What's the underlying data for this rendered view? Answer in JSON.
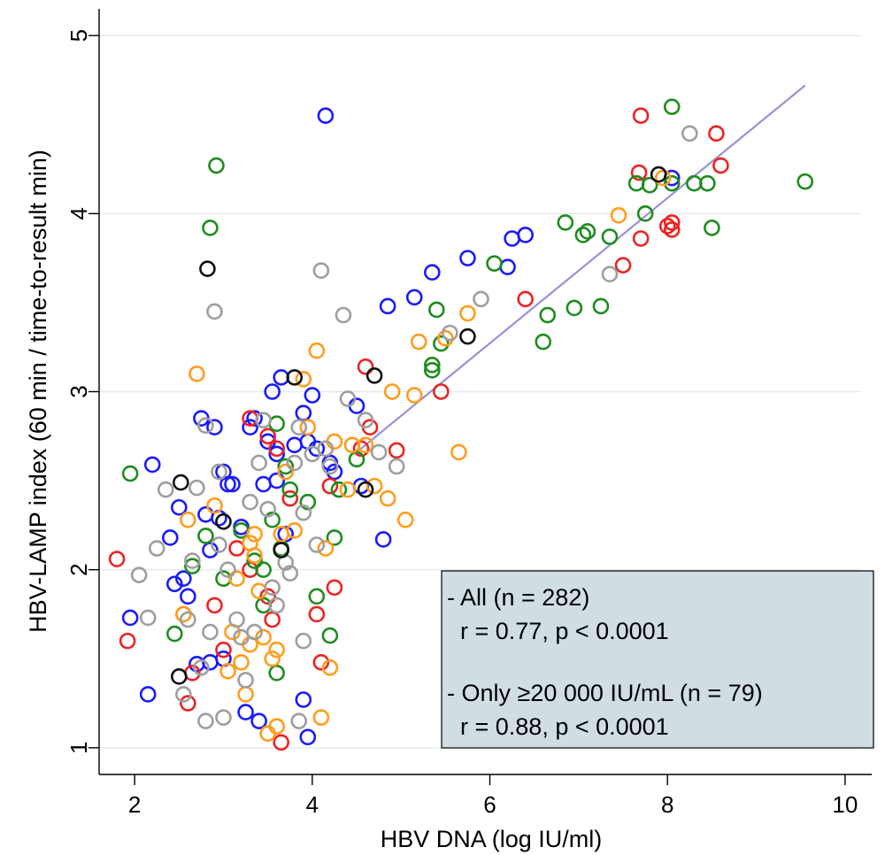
{
  "chart_data": {
    "type": "scatter",
    "xlabel": "HBV DNA (log IU/ml)",
    "ylabel": "HBV-LAMP index (60 min / time-to-result min)",
    "xlim": [
      1.6,
      10.3
    ],
    "ylim": [
      0.85,
      5.15
    ],
    "xticks": [
      2,
      4,
      6,
      8,
      10
    ],
    "yticks": [
      1,
      2,
      3,
      4,
      5
    ],
    "grid": "horizontal",
    "colors": {
      "blue": "#1a1aff",
      "red": "#ee2222",
      "green": "#1e8c1e",
      "orange": "#ff9d1c",
      "gray": "#9e9e9e",
      "black": "#111111",
      "fit": "#9892d6"
    },
    "fit_line": {
      "x": [
        4.5,
        9.55
      ],
      "y": [
        2.66,
        4.72
      ]
    },
    "annotations": [
      {
        "lines": [
          "- All (n = 282)",
          "  r = 0.77, p < 0.0001",
          "",
          "- Only ≥20 000 IU/mL (n = 79)",
          "  r = 0.88, p < 0.0001"
        ]
      }
    ],
    "series": [
      {
        "color": "blue",
        "points": [
          [
            2.2,
            2.59
          ],
          [
            4.15,
            4.55
          ],
          [
            1.95,
            1.73
          ],
          [
            2.15,
            1.3
          ],
          [
            2.4,
            2.18
          ],
          [
            2.55,
            1.95
          ],
          [
            2.6,
            1.85
          ],
          [
            2.75,
            2.85
          ],
          [
            2.7,
            1.47
          ],
          [
            2.8,
            2.31
          ],
          [
            2.85,
            2.11
          ],
          [
            2.9,
            2.8
          ],
          [
            2.95,
            2.29
          ],
          [
            3.0,
            2.55
          ],
          [
            3.05,
            2.48
          ],
          [
            3.1,
            2.48
          ],
          [
            3.2,
            2.24
          ],
          [
            3.3,
            2.8
          ],
          [
            3.35,
            2.85
          ],
          [
            3.45,
            2.48
          ],
          [
            3.5,
            2.72
          ],
          [
            3.55,
            3.0
          ],
          [
            3.6,
            2.5
          ],
          [
            3.65,
            3.08
          ],
          [
            3.7,
            2.2
          ],
          [
            3.8,
            2.7
          ],
          [
            3.9,
            2.88
          ],
          [
            3.95,
            2.72
          ],
          [
            4.0,
            2.98
          ],
          [
            4.05,
            2.68
          ],
          [
            3.9,
            1.27
          ],
          [
            3.95,
            1.06
          ],
          [
            4.2,
            2.6
          ],
          [
            4.5,
            2.92
          ],
          [
            4.8,
            2.17
          ],
          [
            4.85,
            3.48
          ],
          [
            5.15,
            3.53
          ],
          [
            5.35,
            3.67
          ],
          [
            5.75,
            3.75
          ],
          [
            6.2,
            3.7
          ],
          [
            6.25,
            3.86
          ],
          [
            6.4,
            3.88
          ],
          [
            8.05,
            4.2
          ],
          [
            3.25,
            1.2
          ],
          [
            3.4,
            1.15
          ],
          [
            2.45,
            1.92
          ],
          [
            2.5,
            2.35
          ],
          [
            3.0,
            1.5
          ],
          [
            2.85,
            1.48
          ],
          [
            3.6,
            2.65
          ],
          [
            4.25,
            2.55
          ],
          [
            4.55,
            2.47
          ]
        ]
      },
      {
        "color": "red",
        "points": [
          [
            1.8,
            2.06
          ],
          [
            1.92,
            1.6
          ],
          [
            2.6,
            1.25
          ],
          [
            2.9,
            1.8
          ],
          [
            3.0,
            1.55
          ],
          [
            3.3,
            2.85
          ],
          [
            3.5,
            1.85
          ],
          [
            3.5,
            2.75
          ],
          [
            3.6,
            2.68
          ],
          [
            3.65,
            1.03
          ],
          [
            3.75,
            2.4
          ],
          [
            4.05,
            1.75
          ],
          [
            4.1,
            1.48
          ],
          [
            4.2,
            2.47
          ],
          [
            4.25,
            1.9
          ],
          [
            4.55,
            2.68
          ],
          [
            4.6,
            3.14
          ],
          [
            4.65,
            2.8
          ],
          [
            4.95,
            2.67
          ],
          [
            5.45,
            3.0
          ],
          [
            6.4,
            3.52
          ],
          [
            7.5,
            3.71
          ],
          [
            7.7,
            3.86
          ],
          [
            7.7,
            4.55
          ],
          [
            7.68,
            4.23
          ],
          [
            8.0,
            3.93
          ],
          [
            8.05,
            3.91
          ],
          [
            8.05,
            3.95
          ],
          [
            8.55,
            4.45
          ],
          [
            8.6,
            4.27
          ],
          [
            2.65,
            1.42
          ],
          [
            3.55,
            1.72
          ],
          [
            3.3,
            2.0
          ],
          [
            3.15,
            2.12
          ]
        ]
      },
      {
        "color": "green",
        "points": [
          [
            1.95,
            2.54
          ],
          [
            2.45,
            1.64
          ],
          [
            2.65,
            2.02
          ],
          [
            2.85,
            3.92
          ],
          [
            2.92,
            4.27
          ],
          [
            2.8,
            2.19
          ],
          [
            3.0,
            1.95
          ],
          [
            3.2,
            2.22
          ],
          [
            3.35,
            2.05
          ],
          [
            3.45,
            2.0
          ],
          [
            3.45,
            1.8
          ],
          [
            3.6,
            2.82
          ],
          [
            3.65,
            2.12
          ],
          [
            3.7,
            2.58
          ],
          [
            3.75,
            2.45
          ],
          [
            3.95,
            2.38
          ],
          [
            4.05,
            1.85
          ],
          [
            4.2,
            1.63
          ],
          [
            4.25,
            2.18
          ],
          [
            4.5,
            2.62
          ],
          [
            5.35,
            3.12
          ],
          [
            5.4,
            3.46
          ],
          [
            5.45,
            3.27
          ],
          [
            6.05,
            3.72
          ],
          [
            6.6,
            3.28
          ],
          [
            6.65,
            3.43
          ],
          [
            6.85,
            3.95
          ],
          [
            6.95,
            3.47
          ],
          [
            7.05,
            3.88
          ],
          [
            7.1,
            3.9
          ],
          [
            7.25,
            3.48
          ],
          [
            7.35,
            3.87
          ],
          [
            7.65,
            4.17
          ],
          [
            7.75,
            4.0
          ],
          [
            7.8,
            4.16
          ],
          [
            8.05,
            4.6
          ],
          [
            8.05,
            4.17
          ],
          [
            8.3,
            4.17
          ],
          [
            8.45,
            4.17
          ],
          [
            8.5,
            3.92
          ],
          [
            9.55,
            4.18
          ],
          [
            3.6,
            1.42
          ],
          [
            5.35,
            3.15
          ],
          [
            3.55,
            2.28
          ],
          [
            4.3,
            2.45
          ]
        ]
      },
      {
        "color": "orange",
        "points": [
          [
            2.7,
            3.1
          ],
          [
            2.6,
            2.28
          ],
          [
            2.55,
            1.75
          ],
          [
            2.9,
            2.36
          ],
          [
            3.1,
            1.65
          ],
          [
            3.15,
            1.95
          ],
          [
            3.2,
            1.48
          ],
          [
            3.25,
            1.3
          ],
          [
            3.3,
            2.15
          ],
          [
            3.35,
            2.08
          ],
          [
            3.4,
            1.88
          ],
          [
            3.45,
            1.62
          ],
          [
            3.55,
            1.5
          ],
          [
            3.6,
            1.12
          ],
          [
            3.6,
            1.55
          ],
          [
            3.65,
            2.2
          ],
          [
            3.7,
            2.55
          ],
          [
            3.8,
            2.22
          ],
          [
            3.9,
            3.07
          ],
          [
            3.95,
            2.8
          ],
          [
            4.05,
            3.23
          ],
          [
            4.1,
            1.17
          ],
          [
            4.15,
            2.12
          ],
          [
            4.2,
            1.45
          ],
          [
            4.25,
            2.72
          ],
          [
            4.4,
            2.45
          ],
          [
            4.45,
            2.7
          ],
          [
            4.6,
            2.7
          ],
          [
            4.7,
            2.47
          ],
          [
            4.9,
            3.0
          ],
          [
            4.85,
            2.4
          ],
          [
            5.05,
            2.28
          ],
          [
            5.15,
            2.98
          ],
          [
            5.2,
            3.28
          ],
          [
            5.5,
            3.3
          ],
          [
            5.65,
            2.66
          ],
          [
            5.75,
            3.44
          ],
          [
            7.45,
            3.99
          ],
          [
            7.95,
            4.2
          ],
          [
            3.05,
            1.43
          ],
          [
            3.3,
            1.58
          ],
          [
            3.5,
            1.08
          ],
          [
            2.55,
            1.75
          ],
          [
            3.35,
            2.2
          ]
        ]
      },
      {
        "color": "gray",
        "points": [
          [
            2.05,
            1.97
          ],
          [
            2.15,
            1.73
          ],
          [
            2.25,
            2.12
          ],
          [
            2.35,
            2.45
          ],
          [
            2.55,
            1.3
          ],
          [
            2.65,
            2.05
          ],
          [
            2.7,
            2.46
          ],
          [
            2.75,
            1.45
          ],
          [
            2.8,
            2.81
          ],
          [
            2.8,
            1.15
          ],
          [
            2.9,
            3.45
          ],
          [
            2.85,
            1.65
          ],
          [
            2.95,
            2.14
          ],
          [
            3.0,
            1.17
          ],
          [
            3.05,
            2.0
          ],
          [
            3.15,
            1.72
          ],
          [
            3.2,
            1.62
          ],
          [
            3.25,
            1.38
          ],
          [
            3.3,
            2.38
          ],
          [
            3.4,
            2.6
          ],
          [
            3.45,
            2.84
          ],
          [
            3.5,
            2.34
          ],
          [
            3.55,
            1.9
          ],
          [
            3.6,
            1.8
          ],
          [
            3.7,
            2.04
          ],
          [
            3.75,
            1.98
          ],
          [
            3.8,
            2.6
          ],
          [
            3.85,
            2.8
          ],
          [
            3.9,
            1.6
          ],
          [
            3.9,
            2.32
          ],
          [
            4.0,
            2.65
          ],
          [
            4.05,
            2.14
          ],
          [
            4.1,
            3.68
          ],
          [
            4.15,
            2.68
          ],
          [
            4.2,
            2.58
          ],
          [
            4.35,
            3.43
          ],
          [
            4.4,
            2.96
          ],
          [
            4.6,
            2.84
          ],
          [
            4.75,
            2.66
          ],
          [
            4.95,
            2.58
          ],
          [
            5.55,
            3.33
          ],
          [
            5.9,
            3.52
          ],
          [
            7.35,
            3.66
          ],
          [
            8.25,
            4.45
          ],
          [
            3.85,
            1.15
          ],
          [
            3.35,
            1.65
          ],
          [
            2.6,
            1.72
          ],
          [
            2.95,
            2.55
          ]
        ]
      },
      {
        "color": "black",
        "points": [
          [
            2.5,
            1.4
          ],
          [
            2.52,
            2.49
          ],
          [
            2.82,
            3.69
          ],
          [
            3.0,
            2.27
          ],
          [
            3.65,
            2.11
          ],
          [
            3.8,
            3.08
          ],
          [
            4.6,
            2.45
          ],
          [
            4.7,
            3.09
          ],
          [
            5.75,
            3.31
          ],
          [
            7.9,
            4.22
          ]
        ]
      }
    ]
  }
}
